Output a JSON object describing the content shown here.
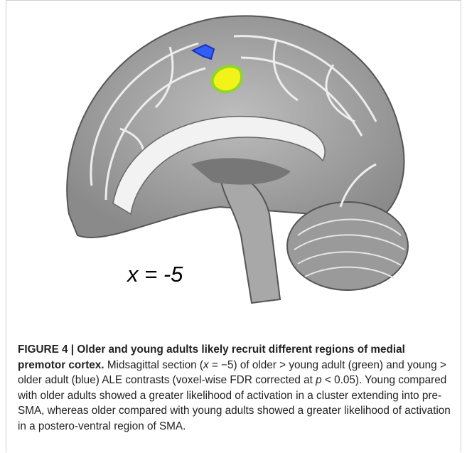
{
  "figure": {
    "image_label": "x = -5"
  },
  "caption": {
    "title": "FIGURE 4 | Older and young adults likely recruit different regions of medial premotor cortex.",
    "body_parts": [
      "Midsagittal section (",
      "x",
      " = −5) of older > young adult (green) and young > older adult (blue) ALE contrasts (voxel-wise FDR corrected at ",
      "p",
      " < 0.05). Young compared with older adults showed a greater likelihood of activation in a cluster extending into pre-SMA, whereas older compared with young adults showed a greater likelihood of activation in a postero-ventral region of SMA."
    ]
  }
}
